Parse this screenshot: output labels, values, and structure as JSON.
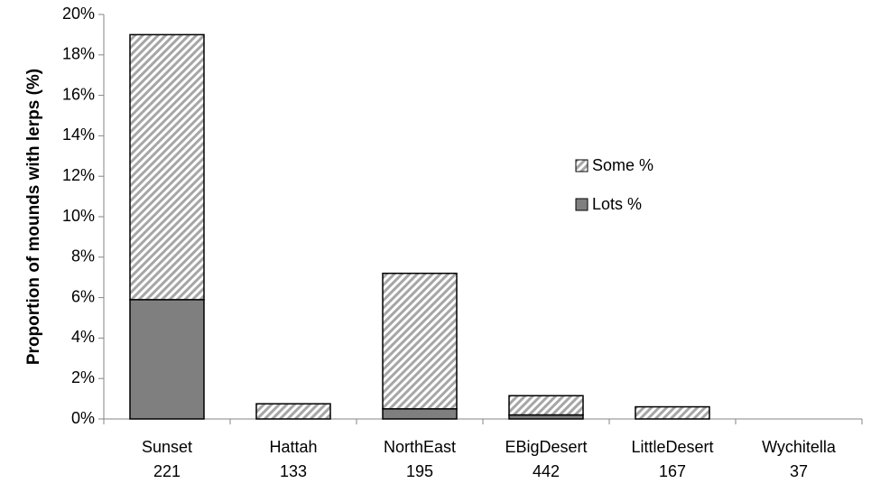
{
  "chart_data": {
    "type": "stacked-bar",
    "y_label": "Proportion of mounds with lerps (%)",
    "categories": [
      [
        "Sunset",
        "221"
      ],
      [
        "Hattah",
        "133"
      ],
      [
        "NorthEast",
        "195"
      ],
      [
        "EBigDesert",
        "442"
      ],
      [
        "LittleDesert",
        "167"
      ],
      [
        "Wychitella",
        "37"
      ]
    ],
    "series": [
      {
        "name": "Lots %",
        "color": "#7f7f7f",
        "values": [
          5.9,
          0,
          0.5,
          0.2,
          0,
          0
        ]
      },
      {
        "name": "Some %",
        "color": "#a6a6a6",
        "pattern": "diagonal",
        "values": [
          13.1,
          0.75,
          6.7,
          0.95,
          0.6,
          0
        ]
      }
    ],
    "ylim": [
      0,
      20
    ],
    "yticks": [
      {
        "value": 0,
        "label": "0%"
      },
      {
        "value": 2,
        "label": "2%"
      },
      {
        "value": 4,
        "label": "4%"
      },
      {
        "value": 6,
        "label": "6%"
      },
      {
        "value": 8,
        "label": "8%"
      },
      {
        "value": 10,
        "label": "10%"
      },
      {
        "value": 12,
        "label": "12%"
      },
      {
        "value": 14,
        "label": "14%"
      },
      {
        "value": 16,
        "label": "16%"
      },
      {
        "value": 18,
        "label": "18%"
      },
      {
        "value": 20,
        "label": "20%"
      }
    ],
    "grid": false
  }
}
